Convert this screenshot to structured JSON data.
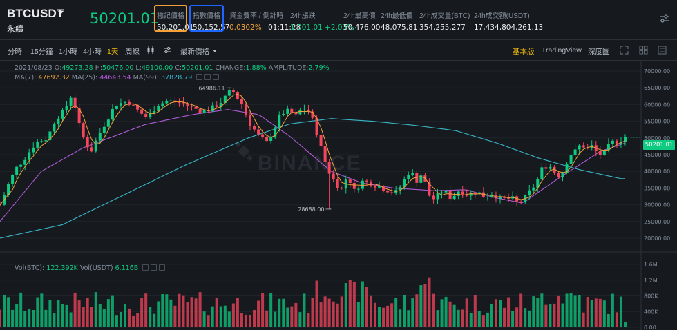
{
  "header": {
    "symbol": "BTCUSDT",
    "contract": "永續",
    "last_price": "50201.01",
    "stats": [
      {
        "label": "標記價格",
        "value": "50,201.01"
      },
      {
        "label": "指數價格",
        "value": "50,152.57"
      },
      {
        "label": "資金費率 / 倒計時",
        "value_a": "0.0302%",
        "value_b": "01:11:28"
      },
      {
        "label": "24h漲跌",
        "value": "1,001.01 +2.03%"
      },
      {
        "label": "24h最高價",
        "value": "50,476.00"
      },
      {
        "label": "24h最低價",
        "value": "48,075.81"
      },
      {
        "label": "24h成交量(BTC)",
        "value": "354,255.277"
      },
      {
        "label": "24h成交額(USDT)",
        "value": "17,434,804,261.13"
      }
    ]
  },
  "toolbar": {
    "intervals": [
      "分時",
      "15分鐘",
      "1小時",
      "4小時",
      "1天",
      "周線"
    ],
    "active_interval": "1天",
    "price_type": "最新價格",
    "views": [
      "基本版",
      "TradingView",
      "深度圖"
    ],
    "active_view": "基本版"
  },
  "info": {
    "ohlc": {
      "date": "2021/08/23",
      "o_label": "O:",
      "o": "49273.28",
      "h_label": "H:",
      "h": "50476.00",
      "l_label": "L:",
      "l": "49100.00",
      "c_label": "C:",
      "c": "50201.01",
      "change_label": "CHANGE:",
      "change": "1.88%",
      "amplitude_label": "AMPLITUDE:",
      "amplitude": "2.79%"
    },
    "ma": {
      "ma7_label": "MA(7):",
      "ma7": "47692.32",
      "ma25_label": "MA(25):",
      "ma25": "44643.54",
      "ma99_label": "MA(99):",
      "ma99": "37828.79"
    },
    "vol": {
      "btc_label": "Vol(BTC):",
      "btc": "122.392K",
      "usdt_label": "Vol(USDT)",
      "usdt": "6.116B"
    }
  },
  "watermark": "BINANCE",
  "colors": {
    "up": "#0ecb81",
    "down": "#f6465d",
    "ma7": "#f0a23c",
    "ma25": "#b05ad6",
    "ma99": "#39b7c8",
    "mark_box": "#f7a035",
    "index_box": "#1e66ff",
    "accent": "#f0b90b"
  },
  "chart_data": {
    "type": "candlestick",
    "price_axis": {
      "ticks": [
        "70000.00",
        "65000.00",
        "60000.00",
        "55000.00",
        "50000.00",
        "45000.00",
        "40000.00",
        "35000.00",
        "30000.00",
        "25000.00",
        "20000.00"
      ],
      "min": 20000,
      "max": 70000
    },
    "volume_axis": {
      "ticks": [
        "1.6M",
        "1.2M",
        "800K",
        "400K",
        "0.00"
      ],
      "max": 1600000
    },
    "current_price_label": "50201.01",
    "annotations": [
      {
        "label": "64986.11"
      },
      {
        "label": "28688.00"
      }
    ],
    "ma_anchors": {
      "ma25": [
        [
          0,
          25000
        ],
        [
          40,
          40000
        ],
        [
          80,
          47000
        ],
        [
          140,
          54000
        ],
        [
          186,
          57000
        ],
        [
          220,
          58500
        ],
        [
          250,
          57000
        ],
        [
          280,
          50500
        ],
        [
          320,
          40000
        ],
        [
          350,
          36500
        ],
        [
          380,
          35000
        ],
        [
          420,
          34200
        ],
        [
          450,
          34500
        ],
        [
          480,
          32000
        ],
        [
          505,
          30500
        ],
        [
          540,
          38000
        ],
        [
          580,
          46000
        ],
        [
          604,
          48500
        ]
      ],
      "ma99": [
        [
          0,
          20000
        ],
        [
          60,
          24000
        ],
        [
          120,
          33000
        ],
        [
          180,
          42000
        ],
        [
          240,
          50000
        ],
        [
          280,
          54200
        ],
        [
          320,
          55800
        ],
        [
          360,
          55000
        ],
        [
          400,
          53800
        ],
        [
          440,
          52200
        ],
        [
          480,
          48500
        ],
        [
          520,
          44000
        ],
        [
          560,
          40500
        ],
        [
          600,
          37800
        ],
        [
          604,
          37800
        ]
      ]
    },
    "price_anchors": [
      [
        0,
        30000
      ],
      [
        8,
        36000
      ],
      [
        16,
        41000
      ],
      [
        24,
        44000
      ],
      [
        34,
        48500
      ],
      [
        46,
        50000
      ],
      [
        54,
        56000
      ],
      [
        62,
        58000
      ],
      [
        70,
        63500
      ],
      [
        75,
        55000
      ],
      [
        82,
        49000
      ],
      [
        88,
        46000
      ],
      [
        94,
        50000
      ],
      [
        104,
        56000
      ],
      [
        112,
        60000
      ],
      [
        124,
        61000
      ],
      [
        130,
        59000
      ],
      [
        142,
        56000
      ],
      [
        152,
        60000
      ],
      [
        162,
        61000
      ],
      [
        176,
        60500
      ],
      [
        186,
        59000
      ],
      [
        196,
        58000
      ],
      [
        206,
        59000
      ],
      [
        216,
        61500
      ],
      [
        224,
        64500
      ],
      [
        234,
        60000
      ],
      [
        240,
        55000
      ],
      [
        250,
        50500
      ],
      [
        258,
        48500
      ],
      [
        264,
        52500
      ],
      [
        272,
        57500
      ],
      [
        280,
        58000
      ],
      [
        286,
        56500
      ],
      [
        292,
        59000
      ],
      [
        298,
        58000
      ],
      [
        304,
        54000
      ],
      [
        310,
        47000
      ],
      [
        316,
        41000
      ],
      [
        322,
        37500
      ],
      [
        330,
        34500
      ],
      [
        336,
        39000
      ],
      [
        342,
        34000
      ],
      [
        350,
        37000
      ],
      [
        358,
        36500
      ],
      [
        366,
        35500
      ],
      [
        374,
        34500
      ],
      [
        382,
        33500
      ],
      [
        388,
        36000
      ],
      [
        396,
        40500
      ],
      [
        402,
        37000
      ],
      [
        408,
        39500
      ],
      [
        414,
        33000
      ],
      [
        420,
        31500
      ],
      [
        428,
        34500
      ],
      [
        436,
        32000
      ],
      [
        444,
        34500
      ],
      [
        452,
        33000
      ],
      [
        460,
        34000
      ],
      [
        468,
        32500
      ],
      [
        476,
        33500
      ],
      [
        484,
        31500
      ],
      [
        494,
        32000
      ],
      [
        500,
        30500
      ],
      [
        506,
        31500
      ],
      [
        512,
        34000
      ],
      [
        518,
        36500
      ],
      [
        524,
        41000
      ],
      [
        530,
        42000
      ],
      [
        536,
        39500
      ],
      [
        542,
        38500
      ],
      [
        550,
        45000
      ],
      [
        556,
        46000
      ],
      [
        562,
        48500
      ],
      [
        566,
        46500
      ],
      [
        572,
        47500
      ],
      [
        578,
        45000
      ],
      [
        584,
        45500
      ],
      [
        590,
        48500
      ],
      [
        596,
        49000
      ],
      [
        604,
        50200
      ]
    ]
  }
}
